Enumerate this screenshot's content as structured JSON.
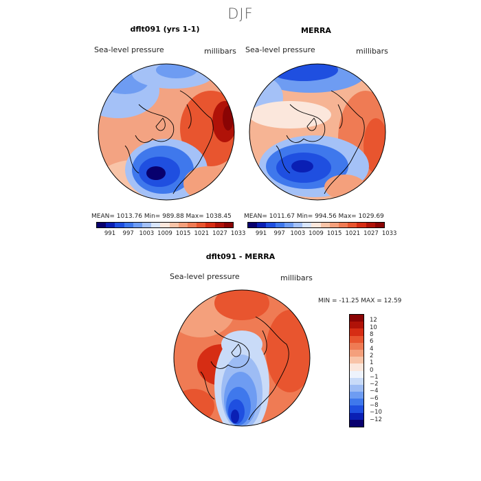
{
  "season": "DJF",
  "panel1": {
    "title": "dflt091 (yrs 1-1)",
    "field_label": "Sea-level pressure",
    "units_label": "millibars",
    "stats": "MEAN= 1013.76   Min= 989.88   Max= 1038.45"
  },
  "panel2": {
    "title": "MERRA",
    "field_label": "Sea-level pressure",
    "units_label": "millibars",
    "stats": "MEAN= 1011.67   Min= 994.56   Max= 1029.69"
  },
  "panel3": {
    "title": "dflt091 - MERRA",
    "field_label": "Sea-level pressure",
    "units_label": "millibars",
    "stats": "MIN = -11.25  MAX =  12.59"
  },
  "colorbar_slp": {
    "ticks": [
      "991",
      "997",
      "1003",
      "1009",
      "1015",
      "1021",
      "1027",
      "1033"
    ],
    "colors": [
      "#08006e",
      "#0a1fb4",
      "#1f4fe0",
      "#3f78ec",
      "#6e9cf2",
      "#a4c1f7",
      "#d8e5fb",
      "#fbe7dc",
      "#f8c4a8",
      "#f4a07c",
      "#ef7b54",
      "#e8552f",
      "#d62d14",
      "#b01208",
      "#8a0404"
    ]
  },
  "colorbar_diff": {
    "ticks": [
      "12",
      "10",
      "8",
      "6",
      "4",
      "2",
      "1",
      "0",
      "−1",
      "−2",
      "−4",
      "−6",
      "−8",
      "−10",
      "−12"
    ],
    "colors": [
      "#8a0404",
      "#b01208",
      "#d62d14",
      "#e8552f",
      "#ef7b54",
      "#f4a07c",
      "#f8c4a8",
      "#fbe7dc",
      "#eef3fc",
      "#c9dbf8",
      "#9dbcf4",
      "#6e9cf2",
      "#3f78ec",
      "#1f4fe0",
      "#0a1fb4",
      "#08006e"
    ]
  }
}
